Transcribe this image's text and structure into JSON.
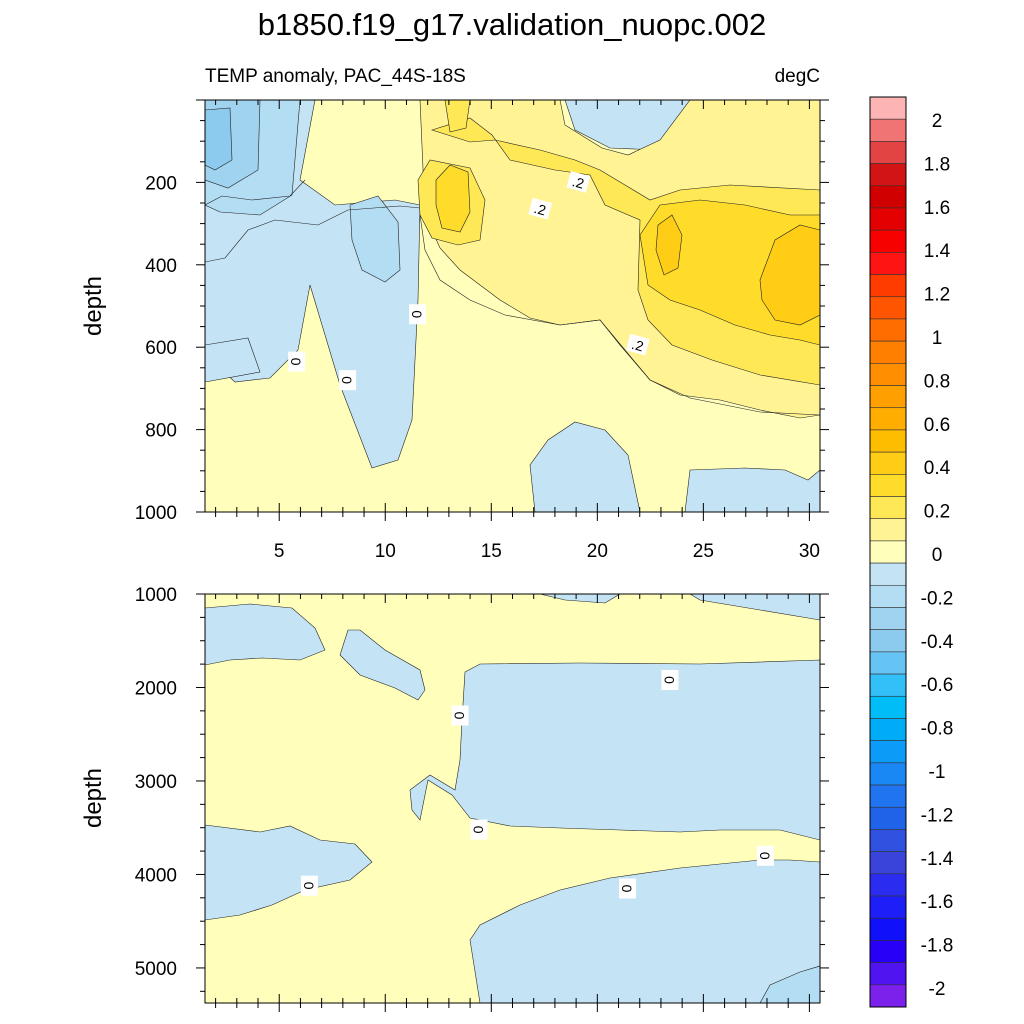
{
  "figure": {
    "title": "b1850.f19_g17.validation_nuopc.002"
  },
  "chart_data": [
    {
      "type": "heatmap",
      "panel": "upper",
      "left_label": "TEMP anomaly, PAC_44S-18S",
      "right_label": "degC",
      "ylabel": "depth",
      "xlabel": "",
      "xlim": [
        1.5,
        30.5
      ],
      "ylim": [
        0,
        1000
      ],
      "y_reversed": true,
      "x_ticks": [
        5,
        10,
        15,
        20,
        25,
        30
      ],
      "y_ticks": [
        200,
        400,
        600,
        800,
        1000
      ],
      "contour_labels": [
        {
          "text": "0",
          "x": 5.8,
          "y": 635
        },
        {
          "text": "0",
          "x": 8.2,
          "y": 680
        },
        {
          "text": "0",
          "x": 11.5,
          "y": 520
        },
        {
          "text": ".2",
          "x": 17.3,
          "y": 265
        },
        {
          "text": ".2",
          "x": 19.1,
          "y": 200
        },
        {
          "text": ".2",
          "x": 21.9,
          "y": 595
        }
      ]
    },
    {
      "type": "heatmap",
      "panel": "lower",
      "left_label": "",
      "right_label": "",
      "ylabel": "depth",
      "xlabel": "",
      "xlim": [
        1.5,
        30.5
      ],
      "ylim": [
        1000,
        5375
      ],
      "y_reversed": true,
      "x_ticks": [
        5,
        10,
        15,
        20,
        25,
        30
      ],
      "y_ticks": [
        1000,
        2000,
        3000,
        4000,
        5000
      ],
      "contour_labels": [
        {
          "text": "0",
          "x": 13.5,
          "y": 2300
        },
        {
          "text": "0",
          "x": 14.4,
          "y": 3520
        },
        {
          "text": "0",
          "x": 6.4,
          "y": 4120
        },
        {
          "text": "0",
          "x": 23.4,
          "y": 1920
        },
        {
          "text": "0",
          "x": 21.4,
          "y": 4150
        },
        {
          "text": "0",
          "x": 27.9,
          "y": 3800
        }
      ]
    }
  ],
  "colorbar": {
    "label_values": [
      "2",
      "1.8",
      "1.6",
      "1.4",
      "1.2",
      "1",
      "0.8",
      "0.6",
      "0.4",
      "0.2",
      "0",
      "-0.2",
      "-0.4",
      "-0.6",
      "-0.8",
      "-1",
      "-1.2",
      "-1.4",
      "-1.6",
      "-1.8",
      "-2"
    ],
    "colors": [
      "#fdb4b4",
      "#f07474",
      "#e24444",
      "#d21414",
      "#d10000",
      "#e40000",
      "#f60000",
      "#ff1414",
      "#ff3c00",
      "#ff5500",
      "#ff6c00",
      "#ff7f00",
      "#ff8f00",
      "#ffa000",
      "#ffae00",
      "#ffbd00",
      "#ffcc16",
      "#ffdc2a",
      "#ffe855",
      "#fff393",
      "#ffffbb",
      "#c4e4f5",
      "#b2ddf3",
      "#9fd3f0",
      "#8ccaee",
      "#66c4f4",
      "#33c0f8",
      "#00bdf8",
      "#00acf8",
      "#0d9bf8",
      "#1a88f4",
      "#2174f0",
      "#2062e8",
      "#3152e0",
      "#3a44db",
      "#2a2cf0",
      "#1e1ef8",
      "#1010fb",
      "#2800f8",
      "#5014f0",
      "#7c20ec"
    ]
  }
}
